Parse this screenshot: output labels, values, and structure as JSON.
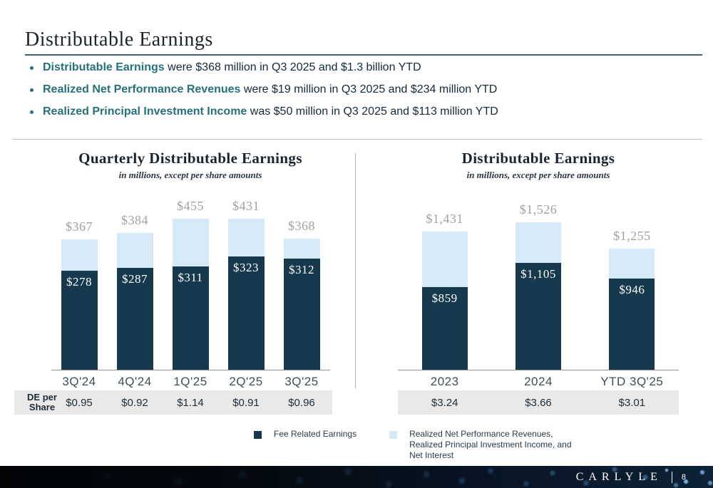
{
  "header": {
    "title": "Distributable Earnings"
  },
  "bullets": [
    {
      "lead": "Distributable Earnings",
      "rest": " were $368 million in Q3 2025 and $1.3 billion YTD"
    },
    {
      "lead": "Realized Net Performance Revenues",
      "rest": " were $19 million in Q3 2025 and $234 million YTD"
    },
    {
      "lead": "Realized Principal Investment Income",
      "rest": " was $50 million in Q3 2025 and $113 million YTD"
    }
  ],
  "chart_data": [
    {
      "type": "bar",
      "stacked": true,
      "title": "Quarterly Distributable Earnings",
      "subtitle": "in millions, except per share amounts",
      "categories": [
        "3Q'24",
        "4Q'24",
        "1Q'25",
        "2Q'25",
        "3Q'25"
      ],
      "series": [
        {
          "name": "Fee Related Earnings",
          "values": [
            278,
            287,
            311,
            323,
            312
          ],
          "color": "#16394d"
        },
        {
          "name": "Realized Net Performance Revenues, Realized Principal Investment Income, and Net Interest",
          "values": [
            89,
            97,
            144,
            108,
            56
          ],
          "color": "#d6e9f6"
        }
      ],
      "totals": [
        367,
        384,
        455,
        431,
        368
      ],
      "total_labels": [
        "$367",
        "$384",
        "$455",
        "$431",
        "$368"
      ],
      "segment_labels": [
        "$278",
        "$287",
        "$311",
        "$323",
        "$312"
      ],
      "ylim": [
        0,
        480
      ],
      "grid": false,
      "de_per_share": {
        "label": "DE per\nShare",
        "values": [
          "$0.95",
          "$0.92",
          "$1.14",
          "$0.91",
          "$0.96"
        ]
      }
    },
    {
      "type": "bar",
      "stacked": true,
      "title": "Distributable Earnings",
      "subtitle": "in millions, except per share amounts",
      "categories": [
        "2023",
        "2024",
        "YTD 3Q'25"
      ],
      "series": [
        {
          "name": "Fee Related Earnings",
          "values": [
            859,
            1105,
            946
          ],
          "color": "#16394d"
        },
        {
          "name": "Realized Net Performance Revenues, Realized Principal Investment Income, and Net Interest",
          "values": [
            572,
            421,
            309
          ],
          "color": "#d6e9f6"
        }
      ],
      "totals": [
        1431,
        1526,
        1255
      ],
      "total_labels": [
        "$1,431",
        "$1,526",
        "$1,255"
      ],
      "segment_labels": [
        "$859",
        "$1,105",
        "$946"
      ],
      "ylim": [
        0,
        1770
      ],
      "grid": false,
      "de_per_share": {
        "label": "",
        "values": [
          "$3.24",
          "$3.66",
          "$3.01"
        ]
      }
    }
  ],
  "legend": {
    "items": [
      {
        "label": "Fee Related Earnings",
        "color": "#16394d"
      },
      {
        "label": "Realized Net Performance Revenues,\nRealized Principal Investment Income, and\nNet Interest",
        "color": "#d6e9f6"
      }
    ]
  },
  "footer": {
    "brand": "CARLYLE",
    "page": "8"
  },
  "colors": {
    "accent_teal": "#26717b",
    "dark_navy": "#16394d",
    "light_blue": "#d6e9f6",
    "gray_label": "#a1a1a1",
    "de_row_bg": "#e9e9e9"
  }
}
